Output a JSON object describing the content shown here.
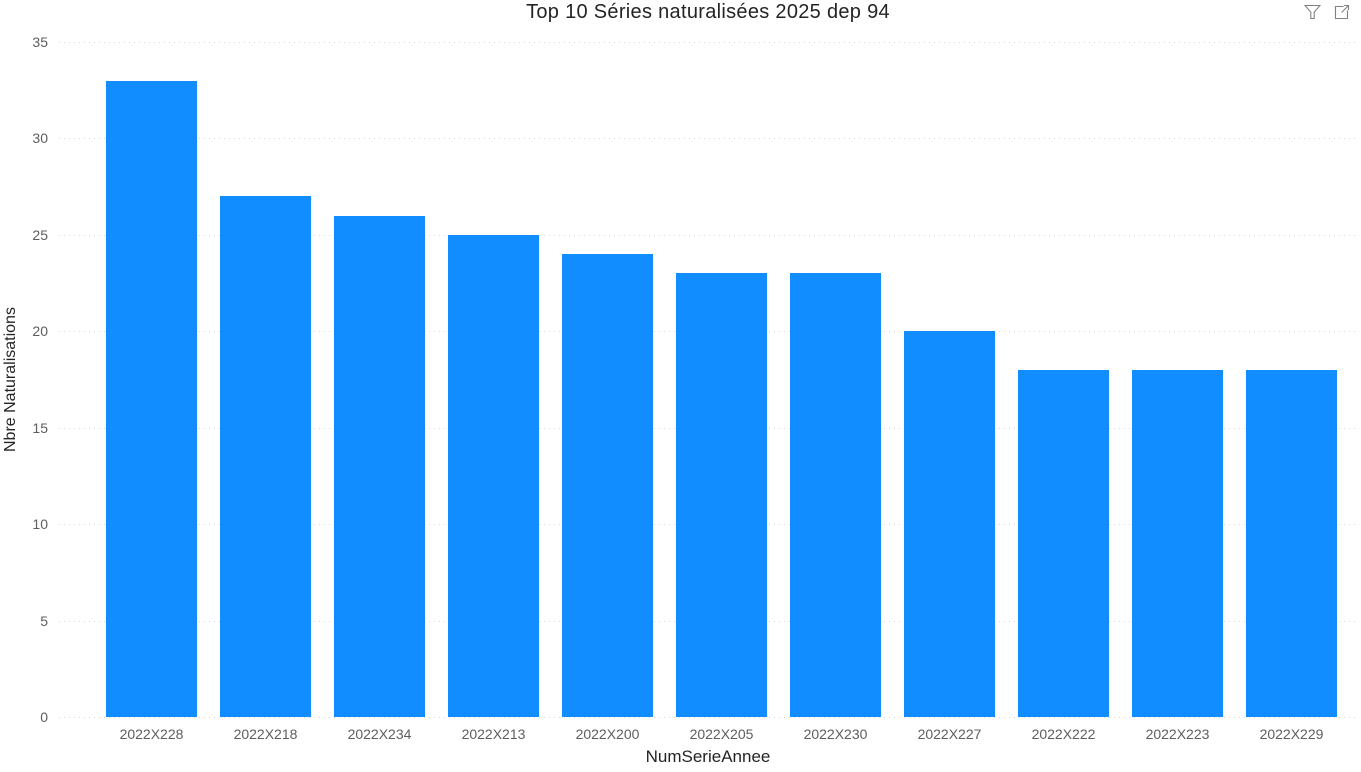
{
  "header": {
    "icons": [
      {
        "name": "filter-icon",
        "meaning": "filter-funnel"
      },
      {
        "name": "focus-mode-icon",
        "meaning": "open-in-focus-mode"
      }
    ],
    "icon_color": "#808080"
  },
  "chart_data": {
    "type": "bar",
    "title": "Top 10 Séries naturalisées 2025 dep 94",
    "categories": [
      "2022X228",
      "2022X218",
      "2022X234",
      "2022X213",
      "2022X200",
      "2022X205",
      "2022X230",
      "2022X227",
      "2022X222",
      "2022X223",
      "2022X229"
    ],
    "values": [
      33,
      27,
      26,
      25,
      24,
      23,
      23,
      20,
      18,
      18,
      18
    ],
    "xlabel": "NumSerieAnnee",
    "ylabel": "Nbre Naturalisations",
    "ylim": [
      0,
      35
    ],
    "ytick_step": 5,
    "yticks": [
      0,
      5,
      10,
      15,
      20,
      25,
      30,
      35
    ],
    "grid": "horizontal-dotted",
    "legend": "none",
    "bar_color": "#118DFF",
    "tick_label_color": "#605E5C",
    "axis_title_color": "#252423",
    "title_color": "#252423",
    "gridline_color": "#D6D6D6",
    "background_color": "#FFFFFF"
  }
}
